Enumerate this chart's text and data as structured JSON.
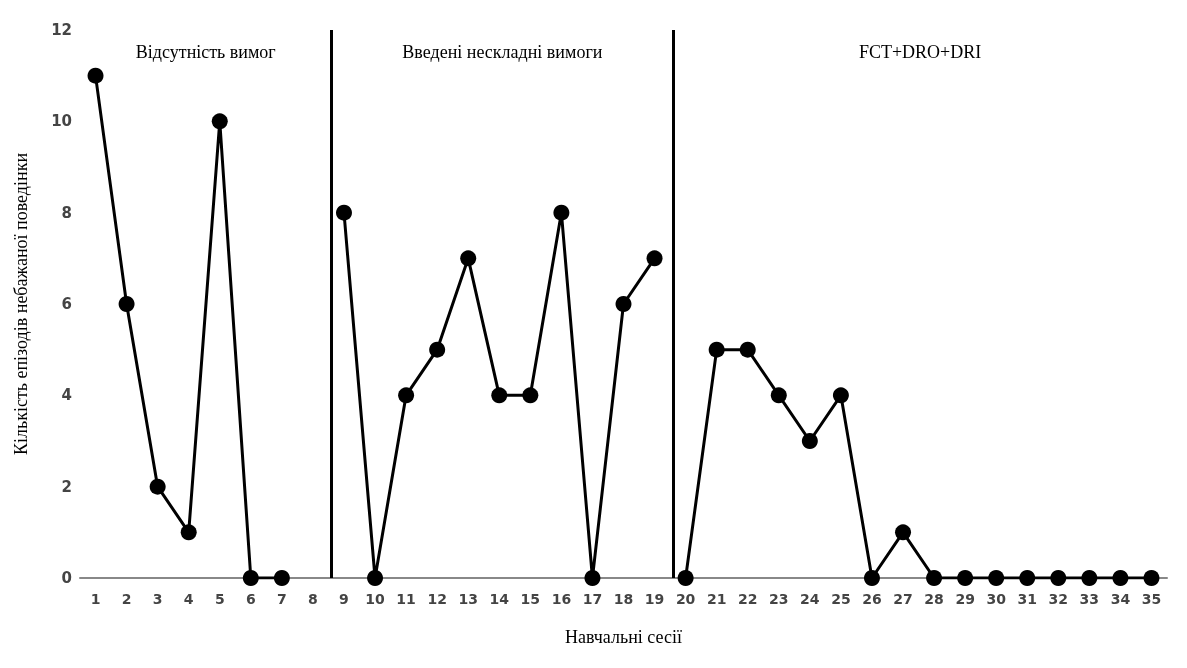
{
  "chart_data": {
    "type": "line",
    "xlabel": "Навчальні сесії",
    "ylabel": "Кількість епізодів небажаної поведінки",
    "x": [
      1,
      2,
      3,
      4,
      5,
      6,
      7,
      8,
      9,
      10,
      11,
      12,
      13,
      14,
      15,
      16,
      17,
      18,
      19,
      20,
      21,
      22,
      23,
      24,
      25,
      26,
      27,
      28,
      29,
      30,
      31,
      32,
      33,
      34,
      35
    ],
    "series": [
      {
        "color": "#000000",
        "values": [
          11,
          6,
          2,
          1,
          10,
          0,
          0,
          null,
          null,
          null,
          null,
          null,
          null,
          null,
          null,
          null,
          null,
          null,
          null,
          null,
          null,
          null,
          null,
          null,
          null,
          null,
          null,
          null,
          null,
          null,
          null,
          null,
          null,
          null,
          null
        ]
      },
      {
        "color": "#000000",
        "values": [
          null,
          null,
          null,
          null,
          null,
          null,
          null,
          null,
          8,
          0,
          4,
          5,
          7,
          4,
          4,
          8,
          0,
          6,
          7,
          null,
          null,
          null,
          null,
          null,
          null,
          null,
          null,
          null,
          null,
          null,
          null,
          null,
          null,
          null,
          null
        ]
      },
      {
        "color": "#000000",
        "values": [
          null,
          null,
          null,
          null,
          null,
          null,
          null,
          null,
          null,
          null,
          null,
          null,
          null,
          null,
          null,
          null,
          null,
          null,
          null,
          0,
          5,
          5,
          4,
          3,
          4,
          0,
          1,
          0,
          0,
          0,
          0,
          0,
          0,
          0,
          0
        ]
      }
    ],
    "xlim": [
      0.5,
      35.5
    ],
    "xticks": [
      1,
      2,
      3,
      4,
      5,
      6,
      7,
      8,
      9,
      10,
      11,
      12,
      13,
      14,
      15,
      16,
      17,
      18,
      19,
      20,
      21,
      22,
      23,
      24,
      25,
      26,
      27,
      28,
      29,
      30,
      31,
      32,
      33,
      34,
      35
    ],
    "ylim": [
      0,
      12
    ],
    "yticks": [
      0,
      2,
      4,
      6,
      8,
      10,
      12
    ],
    "ref_lines": [
      {
        "axis": "x",
        "value": 8.6,
        "color": "#000000"
      },
      {
        "axis": "x",
        "value": 19.6,
        "color": "#000000"
      }
    ],
    "annotations": [
      "Відсутність вимог",
      "Введені нескладні вимоги",
      "FCT+DRO+DRI"
    ],
    "marker": "circle",
    "line_style": "solid",
    "grid": false
  }
}
